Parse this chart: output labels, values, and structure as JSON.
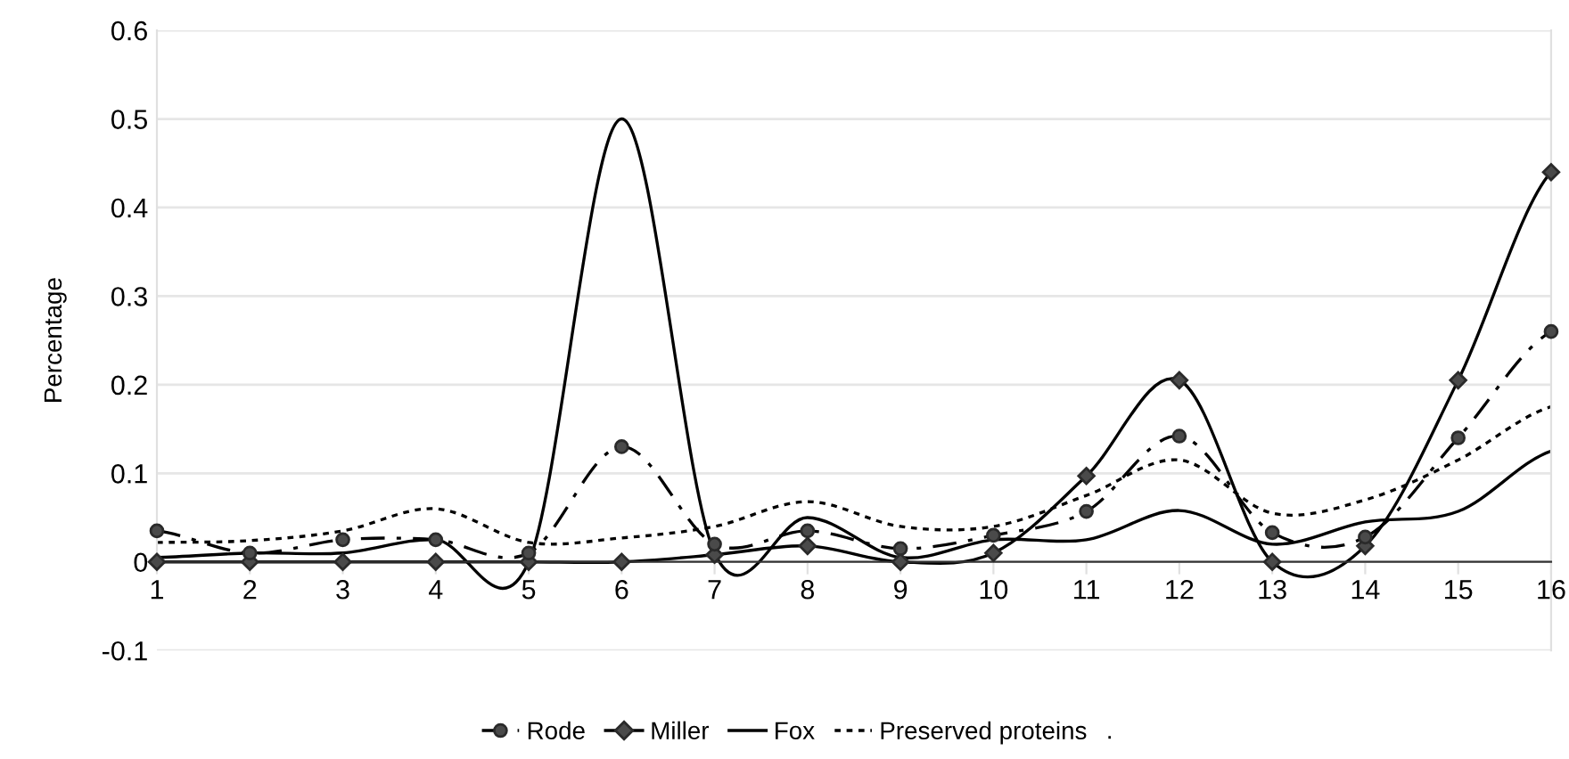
{
  "chart_data": {
    "type": "line",
    "ylabel": "Percentage",
    "categories": [
      "1",
      "2",
      "3",
      "4",
      "5",
      "6",
      "7",
      "8",
      "9",
      "10",
      "11",
      "12",
      "13",
      "14",
      "15",
      "16"
    ],
    "series": [
      {
        "name": "Rode",
        "color": "#000000",
        "marker": "circle",
        "line_style": "dashdot",
        "values": [
          0.035,
          0.01,
          0.025,
          0.025,
          0.01,
          0.13,
          0.02,
          0.035,
          0.015,
          0.03,
          0.057,
          0.142,
          0.033,
          0.028,
          0.14,
          0.26
        ]
      },
      {
        "name": "Miller",
        "color": "#000000",
        "marker": "diamond",
        "line_style": "solid",
        "values": [
          0,
          0,
          0,
          0,
          0,
          0,
          0.008,
          0.018,
          0,
          0.01,
          0.097,
          0.205,
          0,
          0.018,
          0.205,
          0.44
        ]
      },
      {
        "name": "Fox",
        "color": "#000000",
        "marker": "none",
        "line_style": "solid",
        "values": [
          0.005,
          0.01,
          0.01,
          0.025,
          0,
          0.5,
          0.01,
          0.05,
          0.005,
          0.025,
          0.025,
          0.058,
          0.02,
          0.045,
          0.057,
          0.125
        ]
      },
      {
        "name": "Preserved proteins",
        "color": "#000000",
        "marker": "none",
        "line_style": "dotted",
        "values": [
          0.022,
          0.024,
          0.035,
          0.06,
          0.022,
          0.027,
          0.04,
          0.068,
          0.04,
          0.04,
          0.075,
          0.115,
          0.055,
          0.07,
          0.115,
          0.175
        ]
      }
    ],
    "ylim": [
      -0.1,
      0.6
    ],
    "yticks": [
      -0.1,
      0,
      0.1,
      0.2,
      0.3,
      0.4,
      0.5,
      0.6
    ],
    "grid": "y",
    "legend": "bottom",
    "annotations": [
      "."
    ]
  }
}
